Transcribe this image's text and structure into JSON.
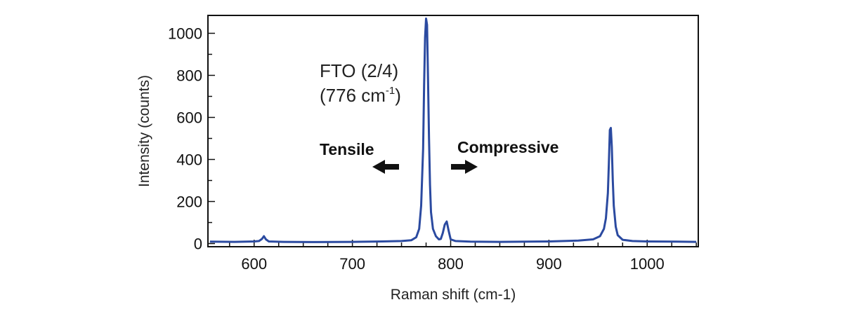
{
  "chart_data": {
    "type": "line",
    "title": "",
    "xlabel": "Raman shift (cm-1)",
    "ylabel": "Intensity (counts)",
    "xlim": [
      553,
      1052
    ],
    "ylim": [
      -15,
      1085
    ],
    "x_ticks": [
      600,
      700,
      800,
      900,
      1000
    ],
    "x_minor_step": 25,
    "y_ticks": [
      0,
      200,
      400,
      600,
      800,
      1000
    ],
    "y_minor_step": 100,
    "grid": false,
    "legend": "none",
    "line_color": "#2b4aa0",
    "series": [
      {
        "x": [
          555,
          580,
          600,
          605,
          608,
          610,
          612,
          615,
          630,
          660,
          700,
          730,
          750,
          760,
          765,
          768,
          770,
          772,
          773,
          774,
          775,
          776,
          777,
          778,
          779,
          780,
          782,
          785,
          788,
          790,
          792,
          794,
          796,
          798,
          800,
          805,
          820,
          850,
          900,
          930,
          945,
          952,
          956,
          958,
          960,
          961,
          962,
          963,
          964,
          965,
          966,
          968,
          970,
          975,
          985,
          1000,
          1030,
          1050
        ],
        "y": [
          9,
          8,
          10,
          12,
          22,
          35,
          20,
          10,
          8,
          7,
          8,
          10,
          12,
          16,
          30,
          70,
          180,
          450,
          750,
          980,
          1070,
          1040,
          780,
          500,
          280,
          150,
          70,
          35,
          20,
          22,
          50,
          90,
          105,
          60,
          20,
          12,
          9,
          8,
          10,
          14,
          20,
          35,
          70,
          120,
          240,
          380,
          540,
          550,
          460,
          300,
          180,
          80,
          40,
          18,
          12,
          10,
          9,
          8
        ]
      }
    ],
    "annotations": {
      "peak_label_line1": "FTO (2/4)",
      "peak_label_line2": "(776 cm",
      "peak_label_sup": "-1",
      "peak_label_close": ")",
      "tensile": "Tensile",
      "compressive": "Compressive"
    }
  }
}
